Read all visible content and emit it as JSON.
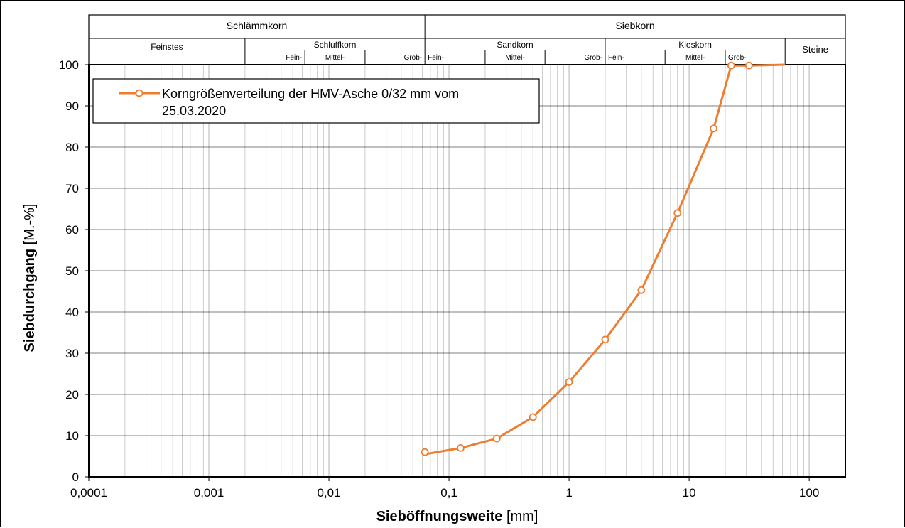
{
  "header": {
    "row1": [
      "Schlämmkorn",
      "Siebkorn"
    ],
    "row2_main": [
      "Feinstes",
      "Schluffkorn",
      "Sandkorn",
      "Kieskorn",
      "Steine"
    ],
    "row2_sub": [
      "Fein-",
      "Mittel-",
      "Grob-",
      "Fein-",
      "Mittel-",
      "Grob-",
      "Fein-",
      "Mittel-",
      "Grob-"
    ]
  },
  "colors": {
    "series": "#ED7D31",
    "grid": "#bfbfbf",
    "axis": "#000000"
  },
  "chart_data": {
    "type": "line",
    "xscale": "log",
    "xlim": [
      0.0001,
      200
    ],
    "ylim": [
      0,
      100
    ],
    "xlabel_bold": "Sieböffnungsweite",
    "xlabel_unit": "[mm]",
    "ylabel_bold": "Siebdurchgang",
    "ylabel_unit": "[M.-%]",
    "xticks": [
      "0,0001",
      "0,001",
      "0,01",
      "0,1",
      "1",
      "10",
      "100"
    ],
    "yticks": [
      "0",
      "10",
      "20",
      "30",
      "40",
      "50",
      "60",
      "70",
      "80",
      "90",
      "100"
    ],
    "grid": true,
    "legend_position": "top-left",
    "series": [
      {
        "name_line1": "Korngrößenverteilung der HMV-Asche 0/32 mm vom",
        "name_line2": "25.03.2020",
        "x": [
          0.063,
          0.125,
          0.25,
          0.5,
          1,
          2,
          4,
          8,
          16,
          22.4,
          31.5,
          63
        ],
        "y": [
          6,
          7,
          9.3,
          14.5,
          23,
          33.3,
          45.3,
          64,
          84.5,
          99.8,
          99.8,
          100
        ],
        "marker_count": 11
      }
    ]
  }
}
